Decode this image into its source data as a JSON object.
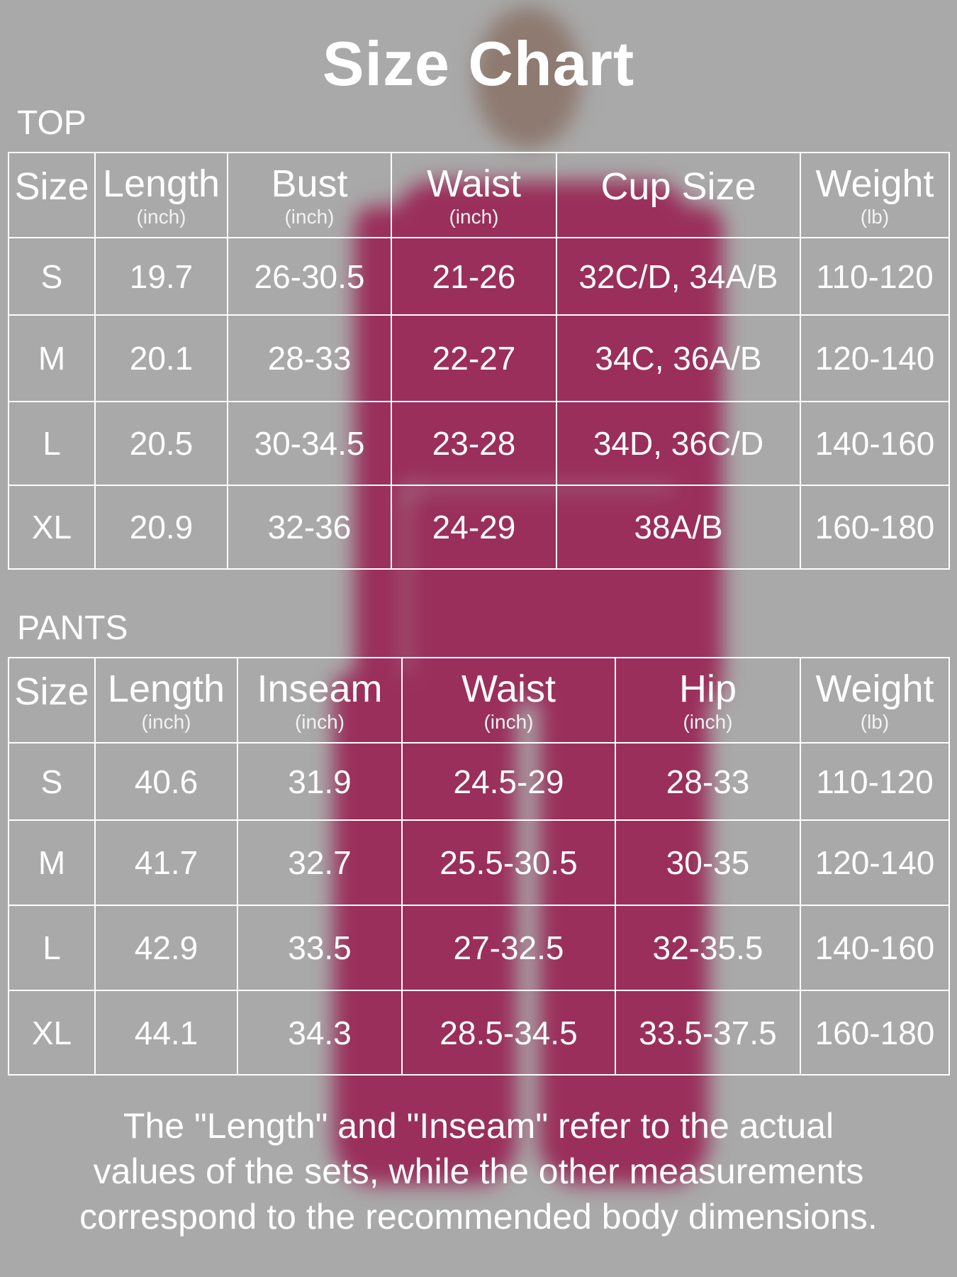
{
  "title": "Size Chart",
  "top": {
    "label": "TOP",
    "headers": [
      {
        "name": "Size",
        "unit": ""
      },
      {
        "name": "Length",
        "unit": "(inch)"
      },
      {
        "name": "Bust",
        "unit": "(inch)"
      },
      {
        "name": "Waist",
        "unit": "(inch)"
      },
      {
        "name": "Cup Size",
        "unit": ""
      },
      {
        "name": "Weight",
        "unit": "(lb)"
      }
    ],
    "rows": [
      [
        "S",
        "19.7",
        "26-30.5",
        "21-26",
        "32C/D, 34A/B",
        "110-120"
      ],
      [
        "M",
        "20.1",
        "28-33",
        "22-27",
        "34C, 36A/B",
        "120-140"
      ],
      [
        "L",
        "20.5",
        "30-34.5",
        "23-28",
        "34D, 36C/D",
        "140-160"
      ],
      [
        "XL",
        "20.9",
        "32-36",
        "24-29",
        "38A/B",
        "160-180"
      ]
    ]
  },
  "pants": {
    "label": "PANTS",
    "headers": [
      {
        "name": "Size",
        "unit": ""
      },
      {
        "name": "Length",
        "unit": "(inch)"
      },
      {
        "name": "Inseam",
        "unit": "(inch)"
      },
      {
        "name": "Waist",
        "unit": "(inch)"
      },
      {
        "name": "Hip",
        "unit": "(inch)"
      },
      {
        "name": "Weight",
        "unit": "(lb)"
      }
    ],
    "rows": [
      [
        "S",
        "40.6",
        "31.9",
        "24.5-29",
        "28-33",
        "110-120"
      ],
      [
        "M",
        "41.7",
        "32.7",
        "25.5-30.5",
        "30-35",
        "120-140"
      ],
      [
        "L",
        "42.9",
        "33.5",
        "27-32.5",
        "32-35.5",
        "140-160"
      ],
      [
        "XL",
        "44.1",
        "34.3",
        "28.5-34.5",
        "33.5-37.5",
        "160-180"
      ]
    ]
  },
  "note": [
    "The \"Length\" and \"Inseam\" refer to the actual",
    "values of the sets, while the other measurements",
    "correspond to the recommended body dimensions."
  ],
  "colors": {
    "background": "#a9a9a9",
    "garment": "#9a2f5b",
    "text": "#ffffff"
  }
}
